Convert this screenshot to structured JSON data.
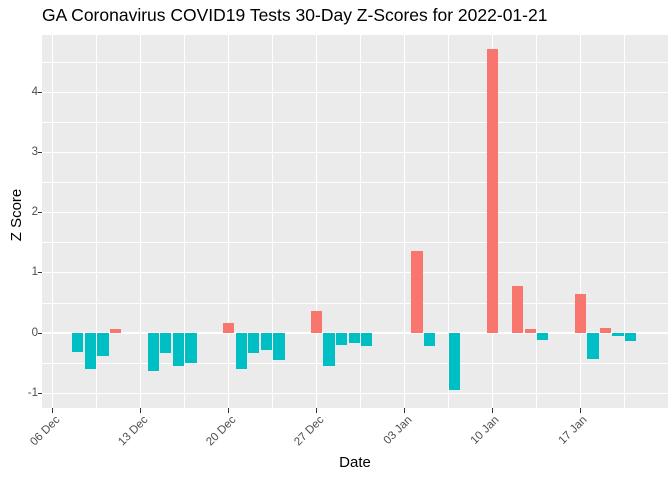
{
  "chart_data": {
    "type": "bar",
    "title": "GA Coronavirus COVID19 Tests 30-Day Z-Scores for 2022-01-21",
    "xlabel": "Date",
    "ylabel": "Z Score",
    "ylim": [
      -1.25,
      4.95
    ],
    "grid": "major white lines at integer z and weekly dates, minor white lines at half-z and mid-week, grey panel",
    "legend_position": "none",
    "colors": {
      "positive_bar": "#F8766D",
      "negative_bar": "#00BFC4",
      "panel_background": "#EBEBEB",
      "gridline": "#FFFFFF",
      "tick_label": "#4D4D4D",
      "tick_mark": "#333333",
      "axis_title": "#000000",
      "title_text": "#000000"
    },
    "y_ticks": [
      {
        "value": -1,
        "label": "-1"
      },
      {
        "value": 0,
        "label": "0"
      },
      {
        "value": 1,
        "label": "1"
      },
      {
        "value": 2,
        "label": "2"
      },
      {
        "value": 3,
        "label": "3"
      },
      {
        "value": 4,
        "label": "4"
      }
    ],
    "x_ticks": [
      {
        "date": "2021-12-06",
        "label": "06 Dec"
      },
      {
        "date": "2021-12-13",
        "label": "13 Dec"
      },
      {
        "date": "2021-12-20",
        "label": "20 Dec"
      },
      {
        "date": "2021-12-27",
        "label": "27 Dec"
      },
      {
        "date": "2022-01-03",
        "label": "03 Jan"
      },
      {
        "date": "2022-01-10",
        "label": "10 Jan"
      },
      {
        "date": "2022-01-17",
        "label": "17 Jan"
      }
    ],
    "points": [
      {
        "date": "2021-12-06",
        "value": 0
      },
      {
        "date": "2021-12-07",
        "value": 0
      },
      {
        "date": "2021-12-08",
        "value": -0.31
      },
      {
        "date": "2021-12-09",
        "value": -0.6
      },
      {
        "date": "2021-12-10",
        "value": -0.38
      },
      {
        "date": "2021-12-11",
        "value": 0.06
      },
      {
        "date": "2021-12-12",
        "value": 0
      },
      {
        "date": "2021-12-13",
        "value": 0
      },
      {
        "date": "2021-12-14",
        "value": -0.63
      },
      {
        "date": "2021-12-15",
        "value": -0.33
      },
      {
        "date": "2021-12-16",
        "value": -0.55
      },
      {
        "date": "2021-12-17",
        "value": -0.5
      },
      {
        "date": "2021-12-18",
        "value": 0
      },
      {
        "date": "2021-12-19",
        "value": 0
      },
      {
        "date": "2021-12-20",
        "value": 0.17
      },
      {
        "date": "2021-12-21",
        "value": -0.59
      },
      {
        "date": "2021-12-22",
        "value": -0.34
      },
      {
        "date": "2021-12-23",
        "value": -0.29
      },
      {
        "date": "2021-12-24",
        "value": -0.45
      },
      {
        "date": "2021-12-25",
        "value": 0
      },
      {
        "date": "2021-12-26",
        "value": 0
      },
      {
        "date": "2021-12-27",
        "value": 0.37
      },
      {
        "date": "2021-12-28",
        "value": -0.54
      },
      {
        "date": "2021-12-29",
        "value": -0.2
      },
      {
        "date": "2021-12-30",
        "value": -0.17
      },
      {
        "date": "2021-12-31",
        "value": -0.22
      },
      {
        "date": "2022-01-01",
        "value": 0
      },
      {
        "date": "2022-01-02",
        "value": 0
      },
      {
        "date": "2022-01-03",
        "value": 0
      },
      {
        "date": "2022-01-04",
        "value": 1.37
      },
      {
        "date": "2022-01-05",
        "value": -0.21
      },
      {
        "date": "2022-01-06",
        "value": 0
      },
      {
        "date": "2022-01-07",
        "value": -0.94
      },
      {
        "date": "2022-01-08",
        "value": 0
      },
      {
        "date": "2022-01-09",
        "value": 0
      },
      {
        "date": "2022-01-10",
        "value": 4.72
      },
      {
        "date": "2022-01-11",
        "value": 0
      },
      {
        "date": "2022-01-12",
        "value": 0.78
      },
      {
        "date": "2022-01-13",
        "value": 0.07
      },
      {
        "date": "2022-01-14",
        "value": -0.12
      },
      {
        "date": "2022-01-15",
        "value": 0
      },
      {
        "date": "2022-01-16",
        "value": 0
      },
      {
        "date": "2022-01-17",
        "value": 0.65
      },
      {
        "date": "2022-01-18",
        "value": -0.44
      },
      {
        "date": "2022-01-19",
        "value": 0.08
      },
      {
        "date": "2022-01-20",
        "value": -0.05
      },
      {
        "date": "2022-01-21",
        "value": -0.13
      }
    ]
  }
}
